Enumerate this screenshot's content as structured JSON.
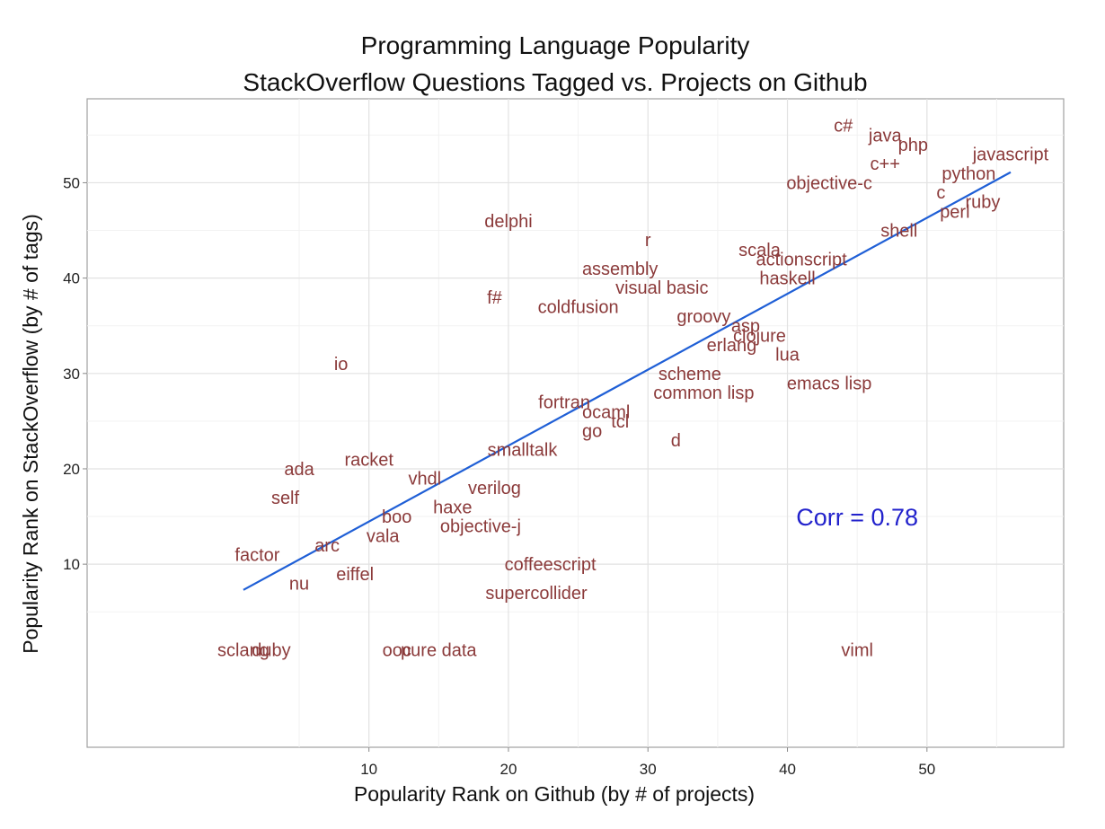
{
  "chart_data": {
    "type": "scatter",
    "title": "Programming Language Popularity",
    "subtitle": "StackOverflow Questions Tagged vs. Projects on Github",
    "xlabel": "Popularity Rank on Github (by # of projects)",
    "ylabel": "Popularity Rank on StackOverflow (by # of tags)",
    "xlim": [
      -10.2,
      59.8
    ],
    "ylim": [
      -9.2,
      58.8
    ],
    "xticks": [
      10,
      20,
      30,
      40,
      50
    ],
    "yticks": [
      10,
      20,
      30,
      40,
      50
    ],
    "minor_xticks": [
      5,
      15,
      25,
      35,
      45,
      55
    ],
    "minor_yticks": [
      5,
      15,
      25,
      35,
      45,
      55
    ],
    "grid": true,
    "label_color": "#8b3a3a",
    "fit_color": "#1f5fd6",
    "corr_color": "#2222cc",
    "points": [
      {
        "label": "c#",
        "x": 44,
        "y": 56
      },
      {
        "label": "java",
        "x": 47,
        "y": 55
      },
      {
        "label": "php",
        "x": 49,
        "y": 54
      },
      {
        "label": "javascript",
        "x": 56,
        "y": 53
      },
      {
        "label": "c++",
        "x": 47,
        "y": 52
      },
      {
        "label": "python",
        "x": 53,
        "y": 51
      },
      {
        "label": "objective-c",
        "x": 43,
        "y": 50
      },
      {
        "label": "c",
        "x": 51,
        "y": 49
      },
      {
        "label": "ruby",
        "x": 54,
        "y": 48
      },
      {
        "label": "perl",
        "x": 52,
        "y": 47
      },
      {
        "label": "delphi",
        "x": 20,
        "y": 46
      },
      {
        "label": "shell",
        "x": 48,
        "y": 45
      },
      {
        "label": "r",
        "x": 30,
        "y": 44
      },
      {
        "label": "scala",
        "x": 38,
        "y": 43
      },
      {
        "label": "actionscript",
        "x": 41,
        "y": 42
      },
      {
        "label": "assembly",
        "x": 28,
        "y": 41
      },
      {
        "label": "haskell",
        "x": 40,
        "y": 40
      },
      {
        "label": "visual basic",
        "x": 31,
        "y": 39
      },
      {
        "label": "f#",
        "x": 19,
        "y": 38
      },
      {
        "label": "coldfusion",
        "x": 25,
        "y": 37
      },
      {
        "label": "groovy",
        "x": 34,
        "y": 36
      },
      {
        "label": "asp",
        "x": 37,
        "y": 35
      },
      {
        "label": "clojure",
        "x": 38,
        "y": 34
      },
      {
        "label": "erlang",
        "x": 36,
        "y": 33
      },
      {
        "label": "lua",
        "x": 40,
        "y": 32
      },
      {
        "label": "io",
        "x": 8,
        "y": 31
      },
      {
        "label": "scheme",
        "x": 33,
        "y": 30
      },
      {
        "label": "emacs lisp",
        "x": 43,
        "y": 29
      },
      {
        "label": "common lisp",
        "x": 34,
        "y": 28
      },
      {
        "label": "fortran",
        "x": 24,
        "y": 27
      },
      {
        "label": "ocaml",
        "x": 27,
        "y": 26
      },
      {
        "label": "tcl",
        "x": 28,
        "y": 25
      },
      {
        "label": "go",
        "x": 26,
        "y": 24
      },
      {
        "label": "d",
        "x": 32,
        "y": 23
      },
      {
        "label": "smalltalk",
        "x": 21,
        "y": 22
      },
      {
        "label": "racket",
        "x": 10,
        "y": 21
      },
      {
        "label": "ada",
        "x": 5,
        "y": 20
      },
      {
        "label": "vhdl",
        "x": 14,
        "y": 19
      },
      {
        "label": "verilog",
        "x": 19,
        "y": 18
      },
      {
        "label": "self",
        "x": 4,
        "y": 17
      },
      {
        "label": "haxe",
        "x": 16,
        "y": 16
      },
      {
        "label": "boo",
        "x": 12,
        "y": 15
      },
      {
        "label": "objective-j",
        "x": 18,
        "y": 14
      },
      {
        "label": "vala",
        "x": 11,
        "y": 13
      },
      {
        "label": "arc",
        "x": 7,
        "y": 12
      },
      {
        "label": "factor",
        "x": 2,
        "y": 11
      },
      {
        "label": "coffeescript",
        "x": 23,
        "y": 10
      },
      {
        "label": "eiffel",
        "x": 9,
        "y": 9
      },
      {
        "label": "nu",
        "x": 5,
        "y": 8
      },
      {
        "label": "supercollider",
        "x": 22,
        "y": 7
      },
      {
        "label": "viml",
        "x": 45,
        "y": 1
      },
      {
        "label": "sclang",
        "x": 1,
        "y": 1
      },
      {
        "label": "duby",
        "x": 3,
        "y": 1
      },
      {
        "label": "ooc",
        "x": 12,
        "y": 1
      },
      {
        "label": "pure data",
        "x": 15,
        "y": 1
      }
    ],
    "fit_line": {
      "x": [
        1,
        56
      ],
      "y": [
        7.3,
        51.1
      ]
    },
    "annotation": {
      "text": "Corr =  0.78",
      "x": 45,
      "y": 15
    }
  }
}
